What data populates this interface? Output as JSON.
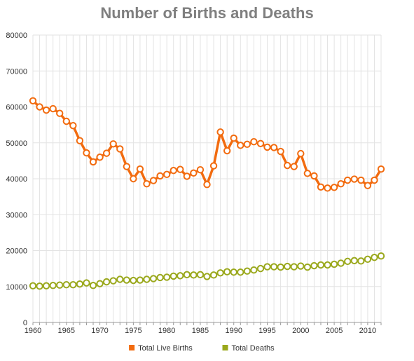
{
  "chart_data": {
    "type": "line",
    "title": "Number of Births and Deaths",
    "xlabel": "",
    "ylabel": "",
    "x": [
      1960,
      1961,
      1962,
      1963,
      1964,
      1965,
      1966,
      1967,
      1968,
      1969,
      1970,
      1971,
      1972,
      1973,
      1974,
      1975,
      1976,
      1977,
      1978,
      1979,
      1980,
      1981,
      1982,
      1983,
      1984,
      1985,
      1986,
      1987,
      1988,
      1989,
      1990,
      1991,
      1992,
      1993,
      1994,
      1995,
      1996,
      1997,
      1998,
      1999,
      2000,
      2001,
      2002,
      2003,
      2004,
      2005,
      2006,
      2007,
      2008,
      2009,
      2010,
      2011,
      2012
    ],
    "xlim": [
      1960,
      2012
    ],
    "ylim": [
      0,
      80000
    ],
    "x_ticks": [
      "1960",
      "1965",
      "1970",
      "1975",
      "1980",
      "1985",
      "1990",
      "1995",
      "2000",
      "2005",
      "2010"
    ],
    "y_ticks": [
      "0",
      "10000",
      "20000",
      "30000",
      "40000",
      "50000",
      "60000",
      "70000",
      "80000"
    ],
    "grid": true,
    "legend_position": "bottom",
    "series": [
      {
        "name": "Total Live Births",
        "color": "#f26b0f",
        "values": [
          61700,
          60000,
          59100,
          59500,
          58200,
          56000,
          54800,
          50600,
          47200,
          44700,
          46000,
          47100,
          49700,
          48300,
          43400,
          40000,
          42700,
          38600,
          39500,
          40800,
          41200,
          42300,
          42600,
          40700,
          41600,
          42500,
          38400,
          43600,
          53000,
          47800,
          51300,
          49300,
          49600,
          50300,
          49800,
          48800,
          48700,
          47600,
          43700,
          43400,
          47000,
          41500,
          40800,
          37700,
          37400,
          37600,
          38600,
          39600,
          39900,
          39600,
          38100,
          39600,
          42700
        ]
      },
      {
        "name": "Total Deaths",
        "color": "#9aa81c",
        "values": [
          10200,
          10100,
          10200,
          10300,
          10400,
          10500,
          10500,
          10700,
          11000,
          10300,
          10800,
          11300,
          11600,
          12000,
          11800,
          11700,
          11800,
          12000,
          12200,
          12500,
          12600,
          12900,
          13000,
          13300,
          13200,
          13300,
          12800,
          13200,
          13800,
          14100,
          14000,
          14000,
          14300,
          14600,
          15000,
          15500,
          15500,
          15400,
          15600,
          15500,
          15700,
          15400,
          15800,
          16000,
          16000,
          16200,
          16500,
          17000,
          17200,
          17100,
          17600,
          18100,
          18500
        ]
      }
    ]
  }
}
